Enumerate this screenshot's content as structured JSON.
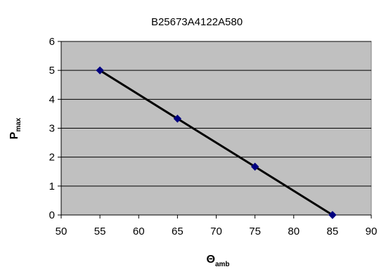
{
  "chart_data": {
    "type": "line",
    "title": "B25673A4122A580",
    "xlabel": "Θ",
    "xlabel_subscript": "amb",
    "ylabel": "P",
    "ylabel_subscript": "max",
    "xlim": [
      50,
      90
    ],
    "ylim": [
      0,
      6
    ],
    "xticks": [
      50,
      55,
      60,
      65,
      70,
      75,
      80,
      85,
      90
    ],
    "yticks": [
      0,
      1,
      2,
      3,
      4,
      5,
      6
    ],
    "grid": "horizontal",
    "legend": "none",
    "series": [
      {
        "x": [
          55,
          65,
          75,
          85
        ],
        "y": [
          5.0,
          3.33,
          1.67,
          0
        ]
      }
    ],
    "colors": {
      "plot_area": "#c0c0c0",
      "gridline": "#000000",
      "line": "#000000",
      "marker": "#000080"
    }
  }
}
